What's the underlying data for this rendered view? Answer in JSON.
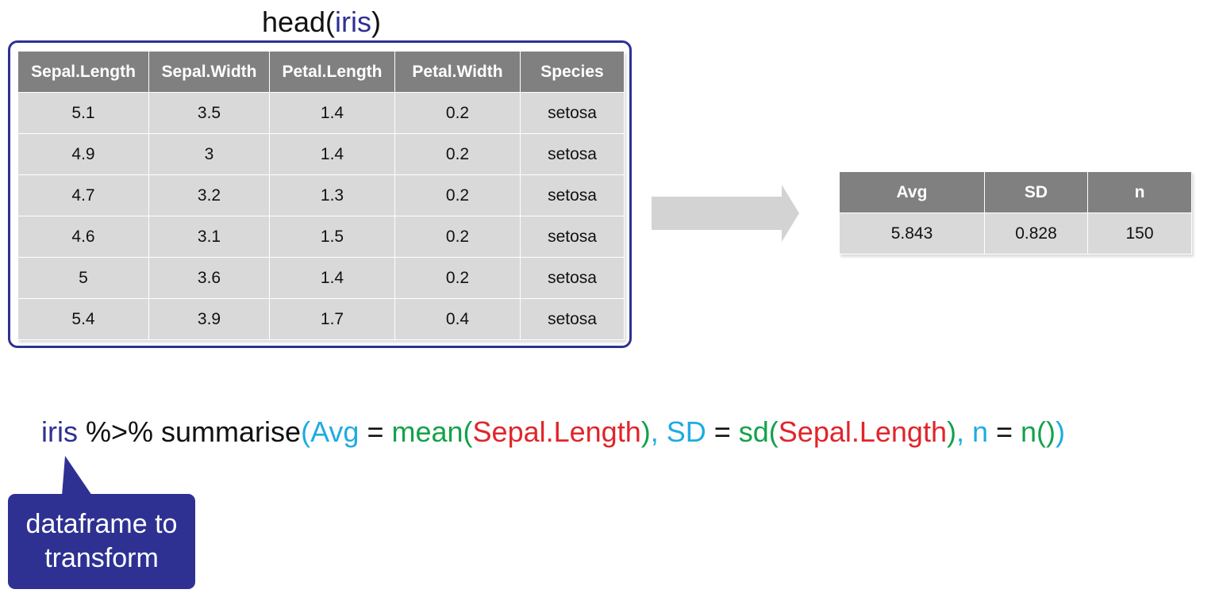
{
  "title": {
    "prefix": "head(",
    "arg": "iris",
    "suffix": ")"
  },
  "iris_table": {
    "headers": [
      "Sepal.Length",
      "Sepal.Width",
      "Petal.Length",
      "Petal.Width",
      "Species"
    ],
    "rows": [
      [
        "5.1",
        "3.5",
        "1.4",
        "0.2",
        "setosa"
      ],
      [
        "4.9",
        "3",
        "1.4",
        "0.2",
        "setosa"
      ],
      [
        "4.7",
        "3.2",
        "1.3",
        "0.2",
        "setosa"
      ],
      [
        "4.6",
        "3.1",
        "1.5",
        "0.2",
        "setosa"
      ],
      [
        "5",
        "3.6",
        "1.4",
        "0.2",
        "setosa"
      ],
      [
        "5.4",
        "3.9",
        "1.7",
        "0.4",
        "setosa"
      ]
    ]
  },
  "result_table": {
    "headers": [
      "Avg",
      "SD",
      "n"
    ],
    "rows": [
      [
        "5.843",
        "0.828",
        "150"
      ]
    ]
  },
  "code": {
    "tokens": [
      {
        "text": "iris",
        "color": "navy"
      },
      {
        "text": " %>% summarise",
        "color": "black"
      },
      {
        "text": "(",
        "color": "blue"
      },
      {
        "text": "Avg",
        "color": "blue"
      },
      {
        "text": " = ",
        "color": "black"
      },
      {
        "text": "mean(",
        "color": "green"
      },
      {
        "text": "Sepal.Length",
        "color": "red"
      },
      {
        "text": ")",
        "color": "green"
      },
      {
        "text": ", SD",
        "color": "blue"
      },
      {
        "text": " = ",
        "color": "black"
      },
      {
        "text": "sd(",
        "color": "green"
      },
      {
        "text": "Sepal.Length",
        "color": "red"
      },
      {
        "text": ")",
        "color": "green"
      },
      {
        "text": ", n",
        "color": "blue"
      },
      {
        "text": " = ",
        "color": "black"
      },
      {
        "text": "n()",
        "color": "green"
      },
      {
        "text": ")",
        "color": "blue"
      }
    ]
  },
  "callout": {
    "line1": "dataframe to",
    "line2": "transform"
  },
  "colors": {
    "navy": "#2e3192",
    "blue": "#1eabe2",
    "green": "#13a24a",
    "red": "#e0252b",
    "black": "#111111",
    "header_gray": "#808080",
    "cell_gray": "#d9d9d9",
    "arrow_gray": "#d3d3d3"
  }
}
